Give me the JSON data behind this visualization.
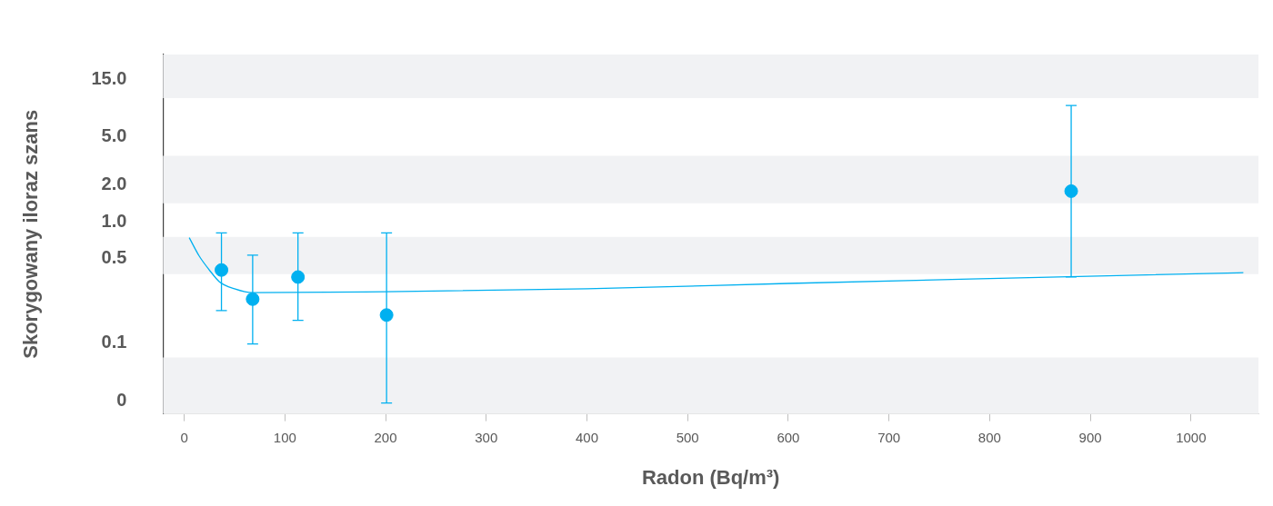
{
  "chart_data": {
    "type": "scatter",
    "xlabel": "Radon (Bq/m³)",
    "ylabel": "Skorygowany iloraz szans",
    "log": "y",
    "grid": false,
    "legend": false,
    "marker": "circle",
    "xlim": [
      -21,
      1067
    ],
    "xticks": [
      0,
      100,
      200,
      300,
      400,
      500,
      600,
      700,
      800,
      900,
      1000
    ],
    "ylim": [
      0.026,
      24
    ],
    "yticks": [
      {
        "value": 0.033,
        "label": "0"
      },
      {
        "value": 0.1,
        "label": "0.1"
      },
      {
        "value": 0.5,
        "label": "0.5"
      },
      {
        "value": 1,
        "label": "1.0"
      },
      {
        "value": 2,
        "label": "2.0"
      },
      {
        "value": 5,
        "label": "5.0"
      },
      {
        "value": 15,
        "label": "15.0"
      }
    ],
    "bands": [
      {
        "axis": "y",
        "from": 10.5,
        "to": 24,
        "color": "#f1f2f4"
      },
      {
        "axis": "y",
        "from": 1.42,
        "to": 3.5,
        "color": "#f1f2f4"
      },
      {
        "axis": "y",
        "from": 0.37,
        "to": 0.75,
        "color": "#f1f2f4"
      },
      {
        "axis": "y",
        "from": 0.026,
        "to": 0.076,
        "color": "#f1f2f4"
      }
    ],
    "series": [
      {
        "color": "#00b0f0",
        "x": [
          37,
          68,
          113,
          201,
          881
        ],
        "values": [
          0.4,
          0.23,
          0.35,
          0.17,
          1.79
        ],
        "errors": [
          [
            0.185,
            0.81
          ],
          [
            0.098,
            0.53
          ],
          [
            0.154,
            0.81
          ],
          [
            0.032,
            0.81
          ],
          [
            0.35,
            9.1
          ]
        ]
      },
      {
        "type": "line",
        "color": "#00b0f0",
        "marker": "none",
        "x": [
          5,
          15,
          25,
          35,
          50,
          68,
          200,
          400,
          600,
          800,
          1052
        ],
        "values": [
          0.74,
          0.52,
          0.4,
          0.32,
          0.28,
          0.26,
          0.265,
          0.28,
          0.31,
          0.34,
          0.38
        ]
      }
    ]
  }
}
